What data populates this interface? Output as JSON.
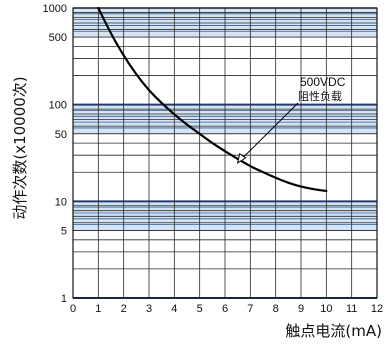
{
  "chart_data": {
    "type": "line",
    "xlabel": "触点电流(mA)",
    "ylabel": "动作次数(x10000次)",
    "xlim": [
      0,
      12
    ],
    "ylim": [
      1,
      1000
    ],
    "yscale": "log",
    "x_ticks": [
      "0",
      "1",
      "2",
      "3",
      "4",
      "5",
      "6",
      "7",
      "8",
      "9",
      "10",
      "11",
      "12"
    ],
    "y_ticks": [
      {
        "value": 1000,
        "label": "1000"
      },
      {
        "value": 500,
        "label": "500"
      },
      {
        "value": 100,
        "label": "100"
      },
      {
        "value": 50,
        "label": "50"
      },
      {
        "value": 10,
        "label": "10"
      },
      {
        "value": 5,
        "label": "5"
      },
      {
        "value": 1,
        "label": "1"
      }
    ],
    "grid": true,
    "series": [
      {
        "name": "500VDC 阻性负载",
        "x": [
          1,
          1.5,
          2,
          2.5,
          3,
          3.5,
          4,
          4.5,
          5,
          5.5,
          6,
          6.5,
          7,
          7.5,
          8,
          8.5,
          9,
          9.5,
          10
        ],
        "y": [
          1000,
          540,
          320,
          205,
          140,
          104,
          79,
          62,
          50,
          40,
          33,
          27.5,
          23,
          20,
          17.5,
          15.5,
          14.2,
          13.3,
          12.8
        ]
      }
    ],
    "annotation": {
      "line1": "500VDC",
      "line2": "阻性负载",
      "x": 6.5,
      "y": 25
    }
  },
  "colors": {
    "band": "#d5e3f2",
    "band_line": "#2c5e9c",
    "dark_line": "#1d3d6e",
    "grid": "#2a2a2a",
    "curve": "#000000"
  }
}
